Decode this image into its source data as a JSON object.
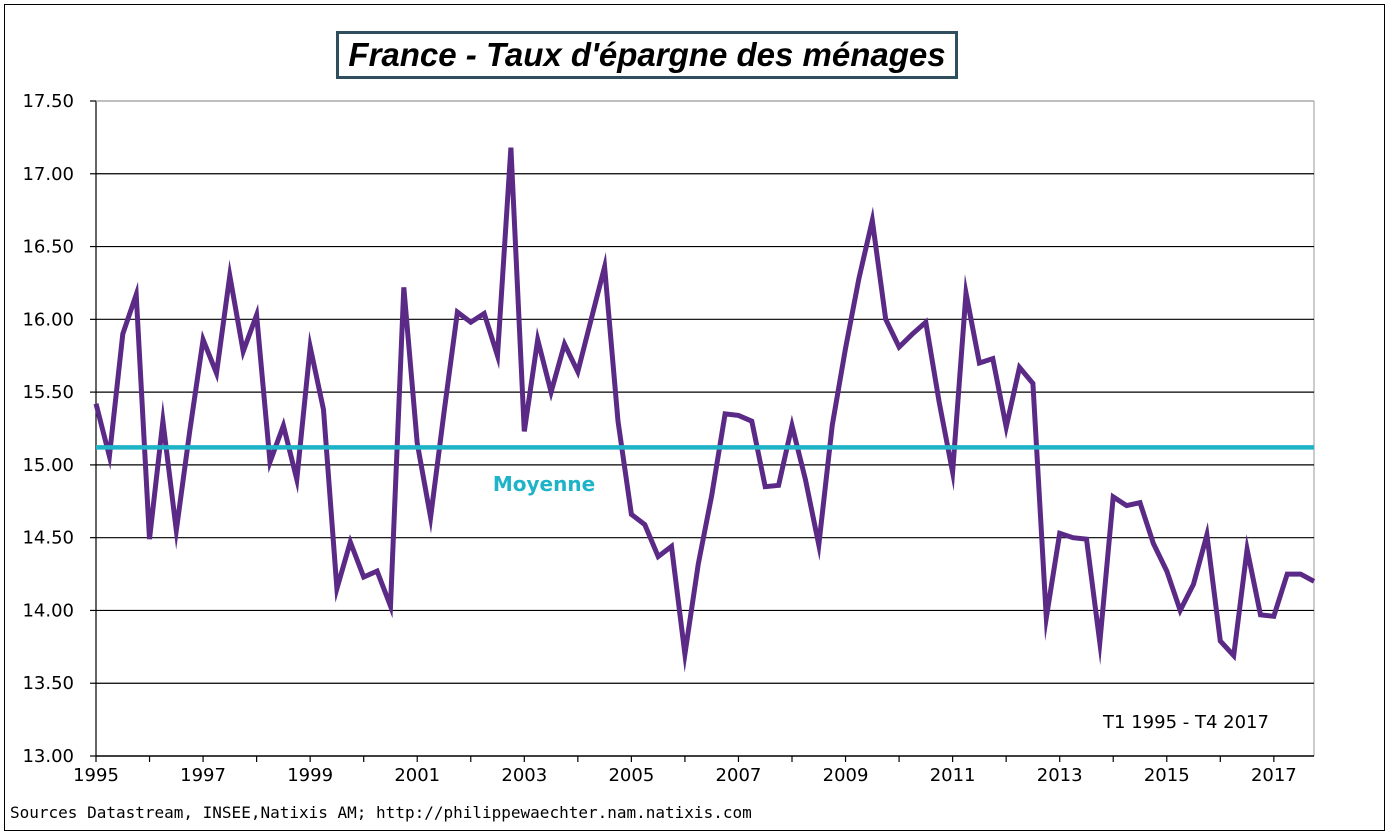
{
  "chart_data": {
    "type": "line",
    "title": "France - Taux d'épargne des ménages",
    "ylim": [
      13.0,
      17.5
    ],
    "xlim": [
      1995,
      2017.75
    ],
    "yticks": [
      "13.00",
      "13.50",
      "14.00",
      "14.50",
      "15.00",
      "15.50",
      "16.00",
      "16.50",
      "17.00",
      "17.50"
    ],
    "xticks": [
      "1995",
      "1997",
      "1999",
      "2001",
      "2003",
      "2005",
      "2007",
      "2009",
      "2011",
      "2013",
      "2015",
      "2017"
    ],
    "grid": true,
    "series": [
      {
        "color": "#5b2a86",
        "x": [
          1995.0,
          1995.25,
          1995.5,
          1995.75,
          1996.0,
          1996.25,
          1996.5,
          1996.75,
          1997.0,
          1997.25,
          1997.5,
          1997.75,
          1998.0,
          1998.25,
          1998.5,
          1998.75,
          1999.0,
          1999.25,
          1999.5,
          1999.75,
          2000.0,
          2000.25,
          2000.5,
          2000.75,
          2001.0,
          2001.25,
          2001.5,
          2001.75,
          2002.0,
          2002.25,
          2002.5,
          2002.75,
          2003.0,
          2003.25,
          2003.5,
          2003.75,
          2004.0,
          2004.25,
          2004.5,
          2004.75,
          2005.0,
          2005.25,
          2005.5,
          2005.75,
          2006.0,
          2006.25,
          2006.5,
          2006.75,
          2007.0,
          2007.25,
          2007.5,
          2007.75,
          2008.0,
          2008.25,
          2008.5,
          2008.75,
          2009.0,
          2009.25,
          2009.5,
          2009.75,
          2010.0,
          2010.25,
          2010.5,
          2010.75,
          2011.0,
          2011.25,
          2011.5,
          2011.75,
          2012.0,
          2012.25,
          2012.5,
          2012.75,
          2013.0,
          2013.25,
          2013.5,
          2013.75,
          2014.0,
          2014.25,
          2014.5,
          2014.75,
          2015.0,
          2015.25,
          2015.5,
          2015.75,
          2016.0,
          2016.25,
          2016.5,
          2016.75,
          2017.0,
          2017.25,
          2017.5,
          2017.75
        ],
        "y": [
          15.42,
          15.06,
          15.9,
          16.17,
          14.49,
          15.3,
          14.55,
          15.23,
          15.86,
          15.63,
          16.3,
          15.78,
          16.03,
          15.02,
          15.27,
          14.9,
          15.81,
          15.38,
          14.15,
          14.47,
          14.23,
          14.27,
          14.03,
          16.22,
          15.15,
          14.64,
          15.36,
          16.05,
          15.98,
          16.04,
          15.75,
          17.18,
          15.23,
          15.86,
          15.5,
          15.83,
          15.64,
          16.0,
          16.36,
          15.3,
          14.66,
          14.59,
          14.37,
          14.44,
          13.7,
          14.32,
          14.79,
          15.35,
          15.34,
          15.3,
          14.85,
          14.86,
          15.27,
          14.9,
          14.45,
          15.27,
          15.8,
          16.28,
          16.68,
          16.0,
          15.81,
          15.9,
          15.98,
          15.43,
          14.95,
          16.18,
          15.7,
          15.73,
          15.26,
          15.67,
          15.56,
          13.95,
          14.53,
          14.5,
          14.49,
          13.78,
          14.78,
          14.72,
          14.74,
          14.46,
          14.27,
          14.0,
          14.18,
          14.52,
          13.79,
          13.69,
          14.42,
          13.97,
          13.96,
          14.25,
          14.25,
          14.2
        ]
      },
      {
        "color": "#1fb3c8",
        "x": [
          1995.0,
          2017.75
        ],
        "y": [
          15.12,
          15.12
        ]
      }
    ],
    "annotations": {
      "mean_label": "Moyenne",
      "period": "T1 1995 - T4 2017"
    }
  },
  "source": "Sources Datastream, INSEE,Natixis AM; http://philippewaechter.nam.natixis.com"
}
